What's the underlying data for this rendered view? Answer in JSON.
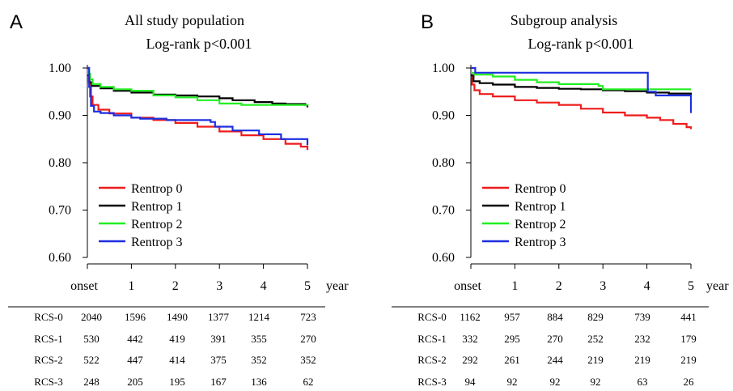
{
  "colors": {
    "Rentrop 0": "#ee1c1c",
    "Rentrop 1": "#000000",
    "Rentrop 2": "#22ee22",
    "Rentrop 3": "#1c2ee0"
  },
  "x_unit_label": "year",
  "x_tick_labels": [
    "onset",
    "1",
    "2",
    "3",
    "4",
    "5"
  ],
  "y_tick_labels": [
    "1.00",
    "0.90",
    "0.80",
    "0.70",
    "0.60"
  ],
  "chart_data": [
    {
      "panel": "A",
      "type": "line",
      "title": "All study population",
      "subtitle": "Log-rank p<0.001",
      "xlabel": "year",
      "ylabel": "",
      "xlim": [
        0,
        5
      ],
      "ylim": [
        0.6,
        1.0
      ],
      "legend_position": "bottom-left",
      "series": [
        {
          "name": "Rentrop 0",
          "points": [
            [
              0,
              1.0
            ],
            [
              0.02,
              0.97
            ],
            [
              0.06,
              0.94
            ],
            [
              0.12,
              0.922
            ],
            [
              0.25,
              0.912
            ],
            [
              0.5,
              0.904
            ],
            [
              1.0,
              0.895
            ],
            [
              1.5,
              0.89
            ],
            [
              2.0,
              0.884
            ],
            [
              2.5,
              0.876
            ],
            [
              3.0,
              0.866
            ],
            [
              3.5,
              0.858
            ],
            [
              4.0,
              0.85
            ],
            [
              4.5,
              0.84
            ],
            [
              4.85,
              0.834
            ],
            [
              5.0,
              0.827
            ]
          ]
        },
        {
          "name": "Rentrop 1",
          "points": [
            [
              0,
              1.0
            ],
            [
              0.02,
              0.985
            ],
            [
              0.05,
              0.97
            ],
            [
              0.1,
              0.962
            ],
            [
              0.3,
              0.957
            ],
            [
              0.6,
              0.952
            ],
            [
              1.0,
              0.948
            ],
            [
              1.5,
              0.944
            ],
            [
              2.0,
              0.942
            ],
            [
              2.5,
              0.94
            ],
            [
              3.0,
              0.936
            ],
            [
              3.3,
              0.932
            ],
            [
              3.8,
              0.928
            ],
            [
              4.2,
              0.925
            ],
            [
              4.5,
              0.924
            ],
            [
              4.95,
              0.922
            ],
            [
              5.0,
              0.917
            ]
          ]
        },
        {
          "name": "Rentrop 2",
          "points": [
            [
              0,
              1.0
            ],
            [
              0.02,
              0.988
            ],
            [
              0.06,
              0.976
            ],
            [
              0.12,
              0.966
            ],
            [
              0.3,
              0.96
            ],
            [
              0.6,
              0.955
            ],
            [
              1.0,
              0.952
            ],
            [
              1.5,
              0.942
            ],
            [
              2.0,
              0.938
            ],
            [
              2.5,
              0.932
            ],
            [
              3.0,
              0.925
            ],
            [
              3.5,
              0.922
            ],
            [
              4.0,
              0.922
            ],
            [
              4.5,
              0.922
            ],
            [
              4.95,
              0.922
            ],
            [
              5.0,
              0.92
            ]
          ]
        },
        {
          "name": "Rentrop 3",
          "points": [
            [
              0,
              1.0
            ],
            [
              0.04,
              0.96
            ],
            [
              0.08,
              0.92
            ],
            [
              0.15,
              0.908
            ],
            [
              0.3,
              0.905
            ],
            [
              0.6,
              0.9
            ],
            [
              1.0,
              0.895
            ],
            [
              1.2,
              0.893
            ],
            [
              1.8,
              0.89
            ],
            [
              2.2,
              0.89
            ],
            [
              2.8,
              0.886
            ],
            [
              2.9,
              0.876
            ],
            [
              3.3,
              0.868
            ],
            [
              3.9,
              0.86
            ],
            [
              4.4,
              0.85
            ],
            [
              4.8,
              0.85
            ],
            [
              5.0,
              0.85
            ],
            [
              5.0,
              0.837
            ]
          ]
        }
      ]
    },
    {
      "panel": "B",
      "type": "line",
      "title": "Subgroup analysis",
      "subtitle": "Log-rank p<0.001",
      "xlabel": "year",
      "ylabel": "",
      "xlim": [
        0,
        5
      ],
      "ylim": [
        0.6,
        1.0
      ],
      "legend_position": "bottom-left",
      "series": [
        {
          "name": "Rentrop 0",
          "points": [
            [
              0,
              0.985
            ],
            [
              0.03,
              0.965
            ],
            [
              0.08,
              0.953
            ],
            [
              0.2,
              0.945
            ],
            [
              0.5,
              0.94
            ],
            [
              1.0,
              0.932
            ],
            [
              1.5,
              0.927
            ],
            [
              2.0,
              0.922
            ],
            [
              2.5,
              0.914
            ],
            [
              3.0,
              0.906
            ],
            [
              3.5,
              0.9
            ],
            [
              4.0,
              0.895
            ],
            [
              4.3,
              0.89
            ],
            [
              4.6,
              0.882
            ],
            [
              4.9,
              0.875
            ],
            [
              5.0,
              0.871
            ]
          ]
        },
        {
          "name": "Rentrop 1",
          "points": [
            [
              0,
              0.985
            ],
            [
              0.06,
              0.972
            ],
            [
              0.2,
              0.968
            ],
            [
              0.5,
              0.965
            ],
            [
              1.0,
              0.96
            ],
            [
              1.5,
              0.958
            ],
            [
              2.0,
              0.956
            ],
            [
              2.5,
              0.955
            ],
            [
              3.0,
              0.953
            ],
            [
              3.5,
              0.951
            ],
            [
              4.0,
              0.948
            ],
            [
              4.5,
              0.946
            ],
            [
              4.9,
              0.946
            ],
            [
              5.0,
              0.942
            ]
          ]
        },
        {
          "name": "Rentrop 2",
          "points": [
            [
              0,
              0.99
            ],
            [
              0.08,
              0.986
            ],
            [
              0.5,
              0.982
            ],
            [
              1.0,
              0.975
            ],
            [
              1.5,
              0.97
            ],
            [
              2.0,
              0.966
            ],
            [
              2.5,
              0.966
            ],
            [
              2.9,
              0.962
            ],
            [
              3.0,
              0.955
            ],
            [
              3.5,
              0.955
            ],
            [
              4.0,
              0.955
            ],
            [
              4.5,
              0.955
            ],
            [
              5.0,
              0.955
            ]
          ]
        },
        {
          "name": "Rentrop 3",
          "points": [
            [
              0,
              1.0
            ],
            [
              0.1,
              0.99
            ],
            [
              1.0,
              0.99
            ],
            [
              2.0,
              0.99
            ],
            [
              3.0,
              0.99
            ],
            [
              4.0,
              0.99
            ],
            [
              4.02,
              0.95
            ],
            [
              4.2,
              0.942
            ],
            [
              4.5,
              0.942
            ],
            [
              5.0,
              0.942
            ],
            [
              5.0,
              0.905
            ]
          ]
        }
      ]
    }
  ],
  "risk_tables": [
    {
      "panel": "A",
      "rows": [
        {
          "label": "RCS-0",
          "values": [
            "2040",
            "1596",
            "1490",
            "1377",
            "1214",
            "723"
          ]
        },
        {
          "label": "RCS-1",
          "values": [
            "530",
            "442",
            "419",
            "391",
            "355",
            "270"
          ]
        },
        {
          "label": "RCS-2",
          "values": [
            "522",
            "447",
            "414",
            "375",
            "352",
            "352"
          ]
        },
        {
          "label": "RCS-3",
          "values": [
            "248",
            "205",
            "195",
            "167",
            "136",
            "62"
          ]
        }
      ]
    },
    {
      "panel": "B",
      "rows": [
        {
          "label": "RCS-0",
          "values": [
            "1162",
            "957",
            "884",
            "829",
            "739",
            "441"
          ]
        },
        {
          "label": "RCS-1",
          "values": [
            "332",
            "295",
            "270",
            "252",
            "232",
            "179"
          ]
        },
        {
          "label": "RCS-2",
          "values": [
            "292",
            "261",
            "244",
            "219",
            "219",
            "219"
          ]
        },
        {
          "label": "RCS-3",
          "values": [
            "94",
            "92",
            "92",
            "92",
            "63",
            "26"
          ]
        }
      ]
    }
  ]
}
